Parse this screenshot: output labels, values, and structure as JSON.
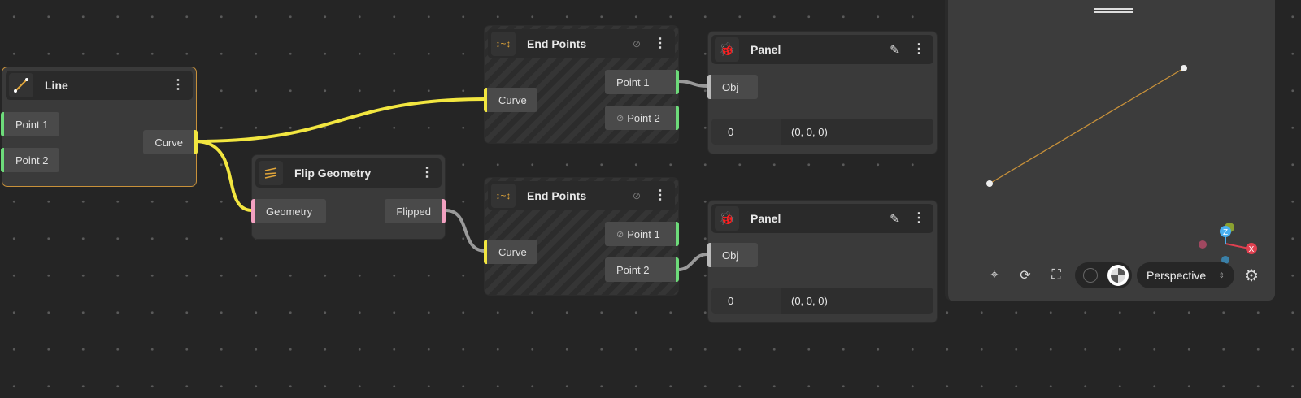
{
  "colors": {
    "curve_wire": "#f2e640",
    "point_wire": "#9a9a9a",
    "point_port": "#6ddb7a",
    "geometry_port": "#f2a0c0",
    "selected_border": "#c8913a"
  },
  "nodes": {
    "line": {
      "title": "Line",
      "icon": "line-icon",
      "inputs": [
        "Point 1",
        "Point 2"
      ],
      "output": "Curve"
    },
    "flip": {
      "title": "Flip Geometry",
      "icon": "flip-geometry-icon",
      "input": "Geometry",
      "output": "Flipped"
    },
    "endpoints1": {
      "title": "End Points",
      "icon": "end-points-icon",
      "input": "Curve",
      "outputs": [
        "Point 1",
        "Point 2"
      ]
    },
    "endpoints2": {
      "title": "End Points",
      "icon": "end-points-icon",
      "input": "Curve",
      "outputs": [
        "Point 1",
        "Point 2"
      ]
    },
    "panel1": {
      "title": "Panel",
      "icon": "bug-icon",
      "input": "Obj",
      "index": "0",
      "value": "(0, 0, 0)"
    },
    "panel2": {
      "title": "Panel",
      "icon": "bug-icon",
      "input": "Obj",
      "index": "0",
      "value": "(0, 0, 0)"
    }
  },
  "viewport": {
    "camera": "Perspective",
    "axes": [
      "X",
      "Y",
      "Z"
    ],
    "shading_selected": 2
  }
}
